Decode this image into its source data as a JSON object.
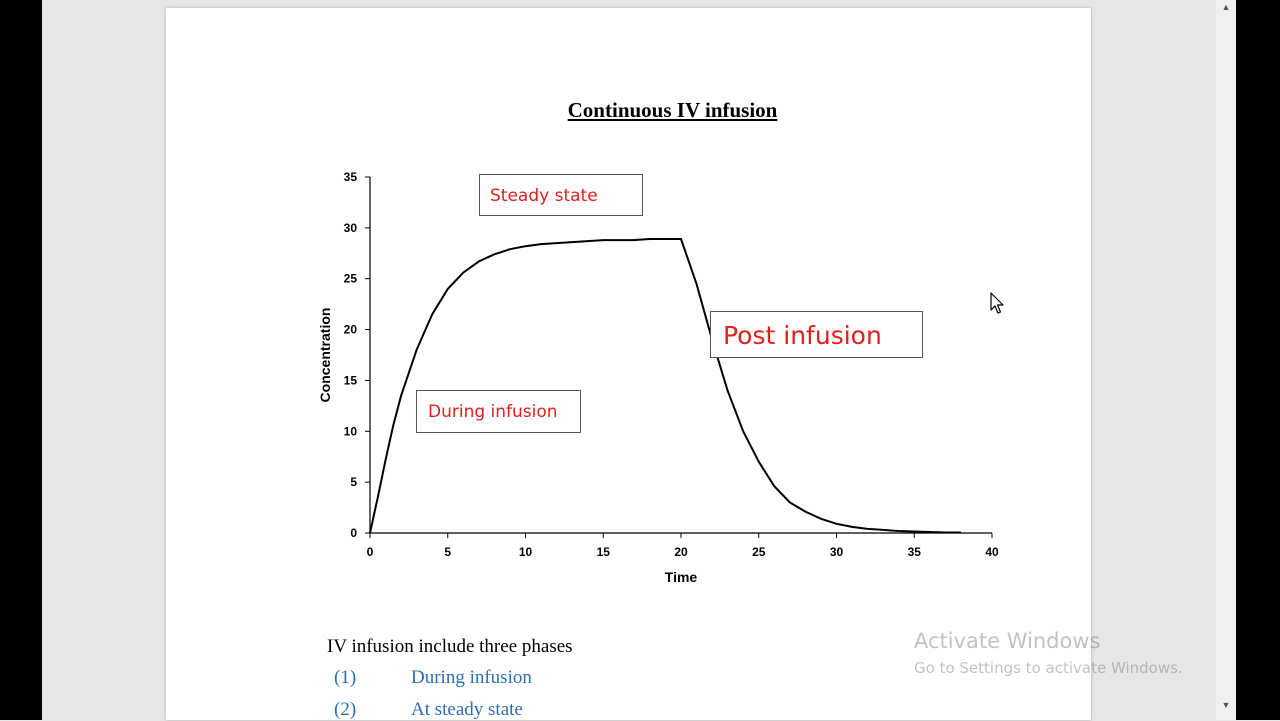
{
  "document": {
    "title": "Continuous IV infusion",
    "intro_text": "IV infusion include three phases",
    "phases": [
      {
        "number": "(1)",
        "label": "During infusion"
      },
      {
        "number": "(2)",
        "label": "At steady state"
      }
    ]
  },
  "annotations": {
    "steady_state": "Steady state",
    "post_infusion": "Post infusion",
    "during_infusion": "During infusion"
  },
  "watermark": {
    "line1": "Activate Windows",
    "line2": "Go to Settings to activate Windows."
  },
  "colors": {
    "annotation_text": "#e0201b",
    "phase_text": "#2e6db4",
    "curve": "#000000"
  },
  "chart_data": {
    "type": "line",
    "title": "Continuous IV infusion",
    "xlabel": "Time",
    "ylabel": "Concentration",
    "xlim": [
      0,
      40
    ],
    "ylim": [
      0,
      35
    ],
    "xticks": [
      0,
      5,
      10,
      15,
      20,
      25,
      30,
      35,
      40
    ],
    "yticks": [
      0,
      5,
      10,
      15,
      20,
      25,
      30,
      35
    ],
    "grid": false,
    "series": [
      {
        "x": [
          0,
          0.5,
          1,
          1.5,
          2,
          3,
          4,
          5,
          6,
          7,
          8,
          9,
          10,
          11,
          12,
          13,
          14,
          15,
          16,
          17,
          18,
          19,
          20,
          21,
          22,
          23,
          24,
          25,
          26,
          27,
          28,
          29,
          30,
          31,
          32,
          33,
          34,
          35,
          36,
          37,
          38
        ],
        "y": [
          0,
          3.5,
          7.2,
          10.6,
          13.5,
          18,
          21.5,
          24,
          25.6,
          26.7,
          27.4,
          27.9,
          28.2,
          28.4,
          28.5,
          28.6,
          28.7,
          28.8,
          28.8,
          28.8,
          28.9,
          28.9,
          28.9,
          24.5,
          19,
          14,
          10,
          7,
          4.6,
          3,
          2.1,
          1.4,
          0.9,
          0.6,
          0.4,
          0.3,
          0.2,
          0.15,
          0.1,
          0.05,
          0.05
        ]
      }
    ]
  }
}
